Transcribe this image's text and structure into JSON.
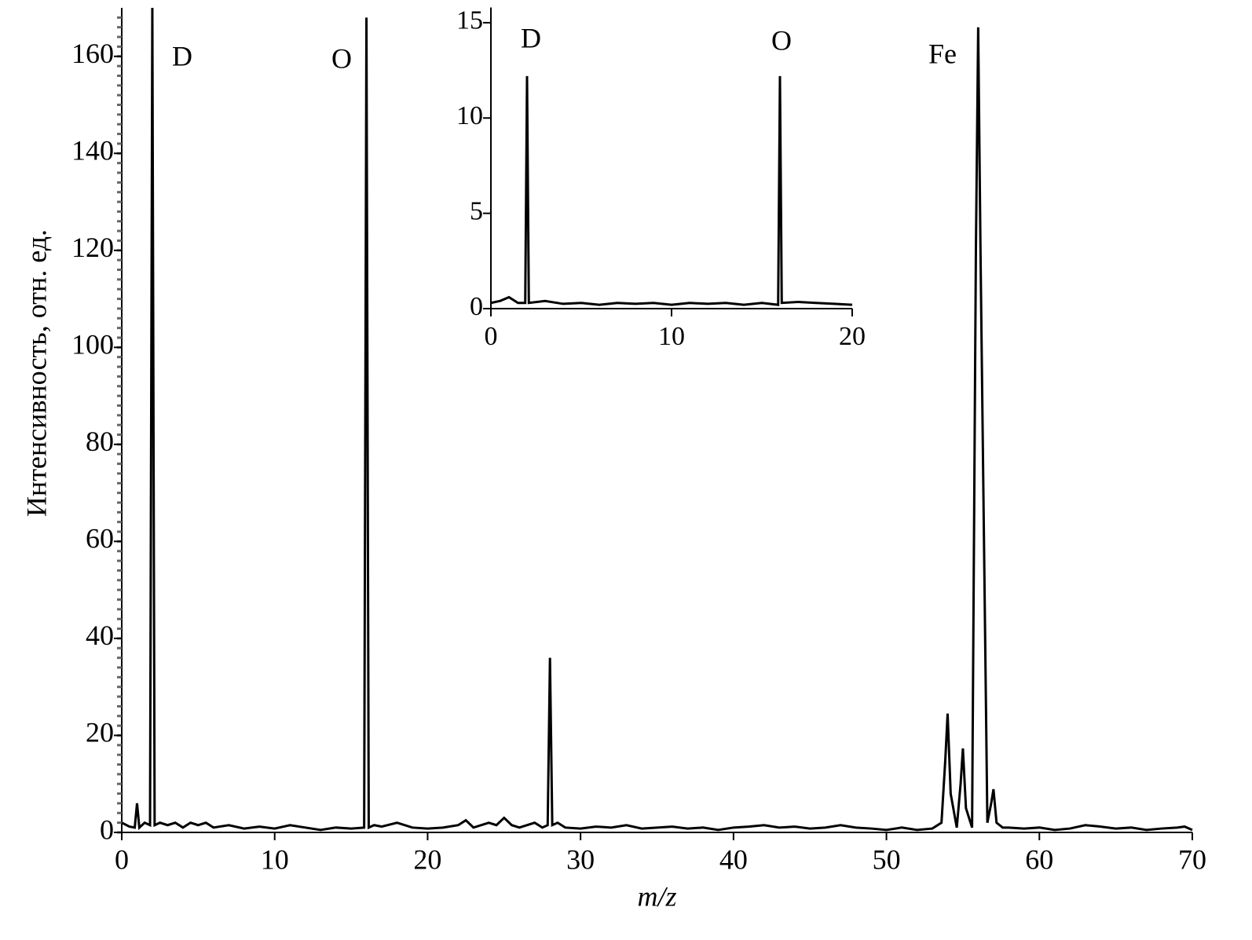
{
  "chart_data": [
    {
      "type": "line",
      "x_label": "m/z",
      "y_label": "Интенсивность, отн. ед.",
      "annotations": [
        "D",
        "O",
        "Fe"
      ],
      "color": "#000000",
      "x": [
        0,
        0.5,
        0.85,
        1,
        1.15,
        1.5,
        1.85,
        2,
        2.15,
        2.5,
        3,
        3.5,
        4,
        4.5,
        5,
        5.5,
        6,
        7,
        8,
        9,
        10,
        11,
        12,
        13,
        14,
        15,
        15.85,
        16,
        16.15,
        16.5,
        17,
        18,
        19,
        20,
        21,
        22,
        22.5,
        23,
        24,
        24.5,
        25,
        25.5,
        26,
        27,
        27.5,
        27.85,
        28,
        28.15,
        28.5,
        29,
        30,
        31,
        32,
        33,
        34,
        35,
        36,
        37,
        38,
        39,
        40,
        41,
        42,
        43,
        44,
        45,
        46,
        47,
        48,
        49,
        50,
        51,
        52,
        53,
        53.6,
        53.85,
        54,
        54.2,
        54.6,
        54.85,
        55,
        55.2,
        55.6,
        55.85,
        56,
        56.15,
        56.6,
        56.85,
        57,
        57.2,
        57.6,
        58,
        59,
        60,
        61,
        62,
        63,
        64,
        65,
        66,
        67,
        68,
        69,
        69.5,
        70
      ],
      "values": [
        2,
        1.2,
        1,
        6,
        1,
        2,
        1.5,
        170,
        1.5,
        2,
        1.5,
        2,
        1,
        2,
        1.5,
        2,
        1,
        1.5,
        0.8,
        1.2,
        0.8,
        1.5,
        1,
        0.5,
        1,
        0.8,
        1,
        168,
        1,
        1.5,
        1.2,
        2,
        1,
        0.8,
        1,
        1.5,
        2.5,
        1,
        2,
        1.5,
        3,
        1.5,
        1,
        2,
        1,
        1.5,
        36,
        1.5,
        2,
        1,
        0.8,
        1.2,
        1,
        1.5,
        0.8,
        1,
        1.2,
        0.8,
        1,
        0.5,
        1,
        1.2,
        1.5,
        1,
        1.2,
        0.8,
        1,
        1.5,
        1,
        0.8,
        0.5,
        1,
        0.5,
        0.8,
        2,
        15,
        24.5,
        8,
        1,
        10,
        17.3,
        5,
        1,
        120,
        166,
        120,
        2,
        6,
        8.9,
        2,
        1,
        1,
        0.8,
        1,
        0.5,
        0.8,
        1.5,
        1.2,
        0.8,
        1,
        0.5,
        0.8,
        1,
        1.2,
        0.5
      ],
      "xlim": [
        0,
        70
      ],
      "xticks": [
        0,
        10,
        20,
        30,
        40,
        50,
        60,
        70
      ],
      "ylim": [
        0,
        170
      ],
      "yticks": [
        0,
        20,
        40,
        60,
        80,
        100,
        120,
        140,
        160
      ]
    },
    {
      "type": "line",
      "annotations": [
        "D",
        "O"
      ],
      "color": "#000000",
      "x": [
        0,
        0.5,
        1,
        1.5,
        1.9,
        2,
        2.1,
        3,
        4,
        5,
        6,
        7,
        8,
        9,
        10,
        11,
        12,
        13,
        14,
        15,
        15.9,
        16,
        16.1,
        17,
        18,
        19,
        20
      ],
      "values": [
        0.3,
        0.4,
        0.6,
        0.3,
        0.3,
        12.2,
        0.3,
        0.4,
        0.25,
        0.3,
        0.2,
        0.3,
        0.25,
        0.3,
        0.2,
        0.3,
        0.25,
        0.3,
        0.2,
        0.3,
        0.2,
        12.2,
        0.3,
        0.35,
        0.3,
        0.25,
        0.2
      ],
      "xlim": [
        0,
        20
      ],
      "xticks": [
        0,
        10,
        20
      ],
      "ylim": [
        0,
        15.8
      ],
      "yticks": [
        0,
        5,
        10,
        15
      ]
    }
  ]
}
